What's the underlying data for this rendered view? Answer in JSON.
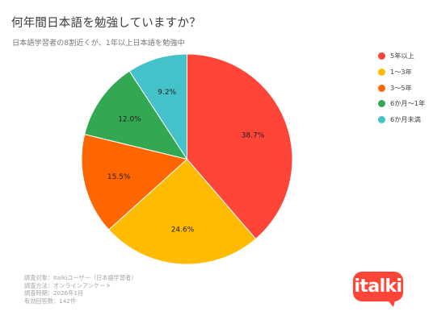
{
  "header": {
    "title": "何年間日本語を勉強していますか？",
    "subtitle": "日本語学習者の8割近くが、1年以上日本語を勉強中"
  },
  "chart_data": {
    "type": "pie",
    "title": "何年間日本語を勉強していますか？",
    "subtitle": "日本語学習者の8割近くが、1年以上日本語を勉強中",
    "categories": [
      "5年以上",
      "1〜3年",
      "3〜5年",
      "6か月〜1年",
      "6か月未満"
    ],
    "values": [
      38.7,
      24.6,
      15.5,
      12.0,
      9.2
    ],
    "labels": [
      "38.7%",
      "24.6%",
      "15.5%",
      "12.0%",
      "9.2%"
    ],
    "colors": [
      "#ff4438",
      "#ffbb00",
      "#ff6600",
      "#33a852",
      "#45c1c9"
    ],
    "start_angle": "12 o'clock",
    "direction": "clockwise",
    "legend_position": "right"
  },
  "footnote": [
    "調査対象：italkiユーザー（日本語学習者）",
    "調査方法：オンラインアンケート",
    "調査時期：2026年1月",
    "有効回答数：142件"
  ],
  "logo": {
    "text": "italki",
    "color": "#ff4438"
  }
}
